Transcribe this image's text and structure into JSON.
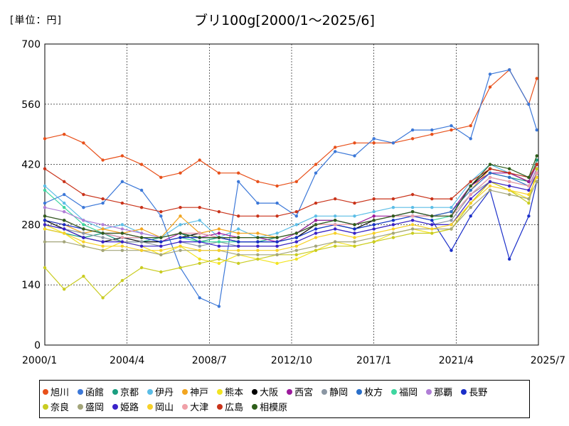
{
  "chart_data": {
    "type": "line",
    "title": "ブリ100g[2000/1～2025/6]",
    "unit_label": "[単位：円]",
    "x_ticks": [
      "2000/1",
      "2004/4",
      "2008/7",
      "2012/10",
      "2017/1",
      "2021/4",
      "2025/7"
    ],
    "xlim": [
      "2000/1",
      "2025/7"
    ],
    "y_ticks": [
      0,
      140,
      280,
      420,
      560,
      700
    ],
    "ylim": [
      0,
      700
    ],
    "grid": true,
    "legend_position": "bottom",
    "x": [
      "2000/1",
      "2001/1",
      "2002/1",
      "2003/1",
      "2004/1",
      "2005/1",
      "2006/1",
      "2007/1",
      "2008/1",
      "2009/1",
      "2010/1",
      "2011/1",
      "2012/1",
      "2013/1",
      "2014/1",
      "2015/1",
      "2016/1",
      "2017/1",
      "2018/1",
      "2019/1",
      "2020/1",
      "2021/1",
      "2022/1",
      "2023/1",
      "2024/1",
      "2025/1",
      "2025/6"
    ],
    "series": [
      {
        "name": "旭川",
        "color": "#e8501a",
        "values": [
          480,
          490,
          470,
          430,
          440,
          420,
          390,
          400,
          430,
          400,
          400,
          380,
          370,
          380,
          420,
          460,
          470,
          470,
          470,
          480,
          490,
          500,
          510,
          600,
          640,
          560,
          620
        ]
      },
      {
        "name": "函館",
        "color": "#3c78d8",
        "values": [
          330,
          350,
          320,
          330,
          380,
          360,
          300,
          180,
          110,
          90,
          380,
          330,
          330,
          300,
          400,
          450,
          440,
          480,
          470,
          500,
          500,
          510,
          480,
          630,
          640,
          560,
          500
        ]
      },
      {
        "name": "京都",
        "color": "#1a9e80",
        "values": [
          270,
          260,
          250,
          260,
          240,
          240,
          250,
          260,
          240,
          250,
          240,
          240,
          250,
          260,
          290,
          290,
          280,
          290,
          300,
          310,
          300,
          310,
          370,
          400,
          390,
          380,
          430
        ]
      },
      {
        "name": "伊丹",
        "color": "#5bbde6",
        "values": [
          370,
          330,
          290,
          270,
          280,
          260,
          250,
          280,
          290,
          250,
          270,
          250,
          260,
          280,
          300,
          300,
          300,
          310,
          320,
          320,
          320,
          320,
          380,
          420,
          400,
          390,
          420
        ]
      },
      {
        "name": "神戸",
        "color": "#f2a520",
        "values": [
          290,
          280,
          260,
          270,
          260,
          270,
          250,
          300,
          260,
          270,
          260,
          260,
          250,
          260,
          280,
          290,
          280,
          290,
          300,
          310,
          300,
          310,
          360,
          410,
          400,
          380,
          420
        ]
      },
      {
        "name": "熊本",
        "color": "#f2e422",
        "values": [
          280,
          260,
          230,
          220,
          240,
          230,
          210,
          230,
          200,
          190,
          210,
          200,
          190,
          200,
          220,
          240,
          230,
          240,
          260,
          270,
          260,
          270,
          330,
          380,
          360,
          340,
          400
        ]
      },
      {
        "name": "大阪",
        "color": "#000000",
        "values": [
          290,
          270,
          250,
          240,
          250,
          240,
          240,
          250,
          260,
          250,
          240,
          240,
          240,
          250,
          280,
          280,
          270,
          290,
          300,
          300,
          300,
          300,
          370,
          410,
          400,
          380,
          420
        ]
      },
      {
        "name": "西宮",
        "color": "#9c1a9c",
        "values": [
          300,
          290,
          270,
          260,
          260,
          250,
          240,
          260,
          250,
          260,
          250,
          250,
          240,
          260,
          290,
          290,
          280,
          300,
          300,
          310,
          300,
          310,
          370,
          400,
          400,
          380,
          420
        ]
      },
      {
        "name": "静岡",
        "color": "#8a96a3",
        "values": [
          280,
          270,
          260,
          250,
          240,
          240,
          230,
          240,
          230,
          240,
          230,
          230,
          230,
          240,
          260,
          270,
          260,
          270,
          280,
          290,
          280,
          290,
          350,
          380,
          370,
          360,
          400
        ]
      },
      {
        "name": "枚方",
        "color": "#2a6fc9",
        "values": [
          300,
          290,
          270,
          260,
          250,
          250,
          250,
          260,
          250,
          250,
          250,
          250,
          250,
          260,
          280,
          290,
          280,
          290,
          300,
          310,
          300,
          310,
          360,
          400,
          390,
          370,
          410
        ]
      },
      {
        "name": "福岡",
        "color": "#3ed6a0",
        "values": [
          360,
          320,
          280,
          260,
          250,
          250,
          240,
          250,
          240,
          240,
          240,
          240,
          240,
          250,
          270,
          280,
          270,
          280,
          290,
          300,
          290,
          300,
          350,
          390,
          380,
          370,
          410
        ]
      },
      {
        "name": "那覇",
        "color": "#b07ed6",
        "values": [
          320,
          310,
          290,
          280,
          270,
          260,
          250,
          260,
          260,
          250,
          250,
          250,
          250,
          260,
          280,
          280,
          280,
          290,
          300,
          300,
          300,
          300,
          350,
          390,
          380,
          370,
          410
        ]
      },
      {
        "name": "長野",
        "color": "#1a2ec9",
        "values": [
          290,
          280,
          270,
          260,
          250,
          250,
          240,
          250,
          250,
          250,
          240,
          240,
          240,
          250,
          270,
          280,
          270,
          280,
          290,
          300,
          290,
          220,
          300,
          360,
          200,
          300,
          380
        ]
      },
      {
        "name": "奈良",
        "color": "#c9cc22",
        "values": [
          180,
          130,
          160,
          110,
          150,
          180,
          170,
          180,
          190,
          200,
          190,
          200,
          210,
          210,
          220,
          230,
          230,
          240,
          250,
          260,
          260,
          270,
          330,
          380,
          360,
          330,
          410
        ]
      },
      {
        "name": "盛岡",
        "color": "#a3a57a",
        "values": [
          240,
          240,
          230,
          220,
          220,
          220,
          210,
          220,
          220,
          220,
          210,
          210,
          210,
          220,
          230,
          240,
          240,
          250,
          260,
          270,
          270,
          270,
          320,
          360,
          350,
          340,
          380
        ]
      },
      {
        "name": "姫路",
        "color": "#3a22c9",
        "values": [
          280,
          270,
          250,
          240,
          240,
          230,
          230,
          240,
          240,
          230,
          230,
          230,
          230,
          240,
          260,
          270,
          260,
          270,
          280,
          290,
          280,
          280,
          340,
          380,
          370,
          360,
          400
        ]
      },
      {
        "name": "岡山",
        "color": "#f7d128",
        "values": [
          270,
          260,
          240,
          230,
          230,
          220,
          220,
          230,
          220,
          220,
          220,
          220,
          220,
          230,
          250,
          260,
          250,
          260,
          270,
          280,
          270,
          280,
          330,
          370,
          360,
          350,
          390
        ]
      },
      {
        "name": "大津",
        "color": "#f0a0a8",
        "values": [
          300,
          290,
          270,
          260,
          250,
          250,
          250,
          260,
          260,
          250,
          250,
          250,
          250,
          260,
          280,
          280,
          280,
          290,
          300,
          300,
          300,
          300,
          350,
          390,
          380,
          370,
          400
        ]
      },
      {
        "name": "広島",
        "color": "#c9331a",
        "values": [
          410,
          380,
          350,
          340,
          330,
          320,
          310,
          320,
          320,
          310,
          300,
          300,
          300,
          310,
          330,
          340,
          330,
          340,
          340,
          350,
          340,
          340,
          380,
          410,
          400,
          390,
          420
        ]
      },
      {
        "name": "相模原",
        "color": "#2e5e1a",
        "values": [
          300,
          290,
          270,
          260,
          260,
          250,
          250,
          260,
          250,
          250,
          250,
          250,
          250,
          260,
          280,
          290,
          280,
          290,
          300,
          310,
          300,
          300,
          370,
          420,
          410,
          390,
          440
        ]
      }
    ]
  }
}
